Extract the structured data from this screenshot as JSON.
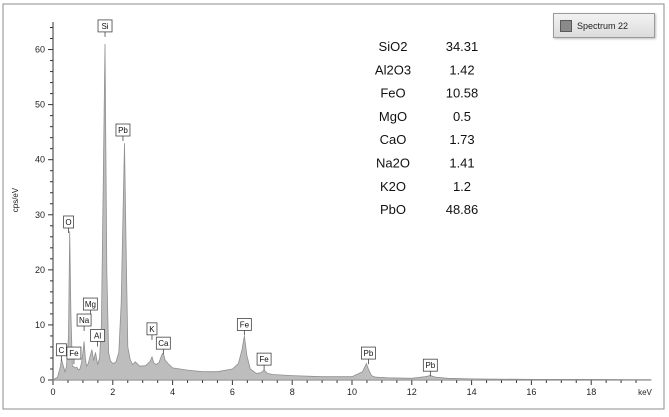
{
  "chart_data": {
    "type": "area",
    "title": "",
    "xlabel": "keV",
    "ylabel": "cps/eV",
    "xlim": [
      0,
      20
    ],
    "ylim": [
      0,
      65
    ],
    "x_ticks": [
      "0",
      "2",
      "4",
      "6",
      "8",
      "10",
      "12",
      "14",
      "16",
      "18"
    ],
    "y_ticks": [
      "0",
      "10",
      "20",
      "30",
      "40",
      "50",
      "60"
    ],
    "legend": {
      "placement": "top-right",
      "label": "Spectrum 22"
    },
    "fill_color": "#bdbdbd",
    "line_color": "#8f8f8f",
    "series": [
      {
        "name": "Spectrum 22",
        "x": [
          0.0,
          0.15,
          0.25,
          0.28,
          0.33,
          0.4,
          0.45,
          0.52,
          0.56,
          0.6,
          0.65,
          0.7,
          0.75,
          0.8,
          0.85,
          0.9,
          0.95,
          1.0,
          1.04,
          1.08,
          1.12,
          1.18,
          1.25,
          1.3,
          1.36,
          1.42,
          1.49,
          1.56,
          1.62,
          1.68,
          1.74,
          1.8,
          1.86,
          1.92,
          2.0,
          2.1,
          2.2,
          2.28,
          2.34,
          2.39,
          2.44,
          2.5,
          2.58,
          2.66,
          2.75,
          2.9,
          3.1,
          3.25,
          3.31,
          3.37,
          3.45,
          3.55,
          3.64,
          3.69,
          3.75,
          3.85,
          4.0,
          4.5,
          5.0,
          5.5,
          6.0,
          6.2,
          6.32,
          6.4,
          6.48,
          6.6,
          6.8,
          6.95,
          7.06,
          7.17,
          7.35,
          8.0,
          9.0,
          10.0,
          10.35,
          10.48,
          10.55,
          10.65,
          10.8,
          11.2,
          12.0,
          12.45,
          12.62,
          12.8,
          13.2,
          14.0,
          16.0,
          18.0,
          20.0
        ],
        "y": [
          0,
          0.5,
          2.5,
          3.8,
          2.8,
          1.5,
          2.5,
          8,
          27,
          12,
          2.5,
          2.4,
          2.2,
          2.3,
          1.8,
          2,
          3,
          5,
          7,
          4,
          2.5,
          3,
          4.5,
          5.5,
          3.5,
          5,
          2.8,
          4,
          10,
          35,
          61,
          20,
          5,
          3.5,
          3,
          3.2,
          5,
          14,
          30,
          43,
          25,
          6,
          3.8,
          2.8,
          3.3,
          2.5,
          2.6,
          3.4,
          4.2,
          3.1,
          2.8,
          3.2,
          4.6,
          4.9,
          3.6,
          3,
          2.2,
          1.8,
          1.5,
          1.5,
          2,
          3,
          5.5,
          8,
          4.5,
          2,
          1.2,
          1.3,
          1.8,
          1.2,
          1,
          0.8,
          0.6,
          0.6,
          1.5,
          3,
          2,
          0.8,
          0.5,
          0.4,
          0.3,
          0.6,
          0.8,
          0.5,
          0.3,
          0.2,
          0.1,
          0.1,
          0.05
        ]
      }
    ],
    "peak_labels": [
      {
        "label": "Si",
        "x": 1.74,
        "y": 63.2
      },
      {
        "label": "Pb",
        "x": 2.34,
        "y": 44.3
      },
      {
        "label": "O",
        "x": 0.52,
        "y": 27.6
      },
      {
        "label": "Mg",
        "x": 1.25,
        "y": 12.7
      },
      {
        "label": "Na",
        "x": 1.04,
        "y": 9.8
      },
      {
        "label": "Al",
        "x": 1.49,
        "y": 7.0
      },
      {
        "label": "C",
        "x": 0.28,
        "y": 4.4
      },
      {
        "label": "Fe",
        "x": 0.7,
        "y": 3.8
      },
      {
        "label": "K",
        "x": 3.31,
        "y": 8.2
      },
      {
        "label": "Ca",
        "x": 3.69,
        "y": 5.6
      },
      {
        "label": "Fe",
        "x": 6.4,
        "y": 9.0
      },
      {
        "label": "Fe",
        "x": 7.06,
        "y": 2.7
      },
      {
        "label": "Pb",
        "x": 10.55,
        "y": 3.8
      },
      {
        "label": "Pb",
        "x": 12.62,
        "y": 1.6
      }
    ],
    "composition": [
      {
        "oxide": "SiO2",
        "value": "34.31"
      },
      {
        "oxide": "Al2O3",
        "value": "1.42"
      },
      {
        "oxide": "FeO",
        "value": "10.58"
      },
      {
        "oxide": "MgO",
        "value": "0.5"
      },
      {
        "oxide": "CaO",
        "value": "1.73"
      },
      {
        "oxide": "Na2O",
        "value": "1.41"
      },
      {
        "oxide": "K2O",
        "value": "1.2"
      },
      {
        "oxide": "PbO",
        "value": "48.86"
      }
    ]
  }
}
